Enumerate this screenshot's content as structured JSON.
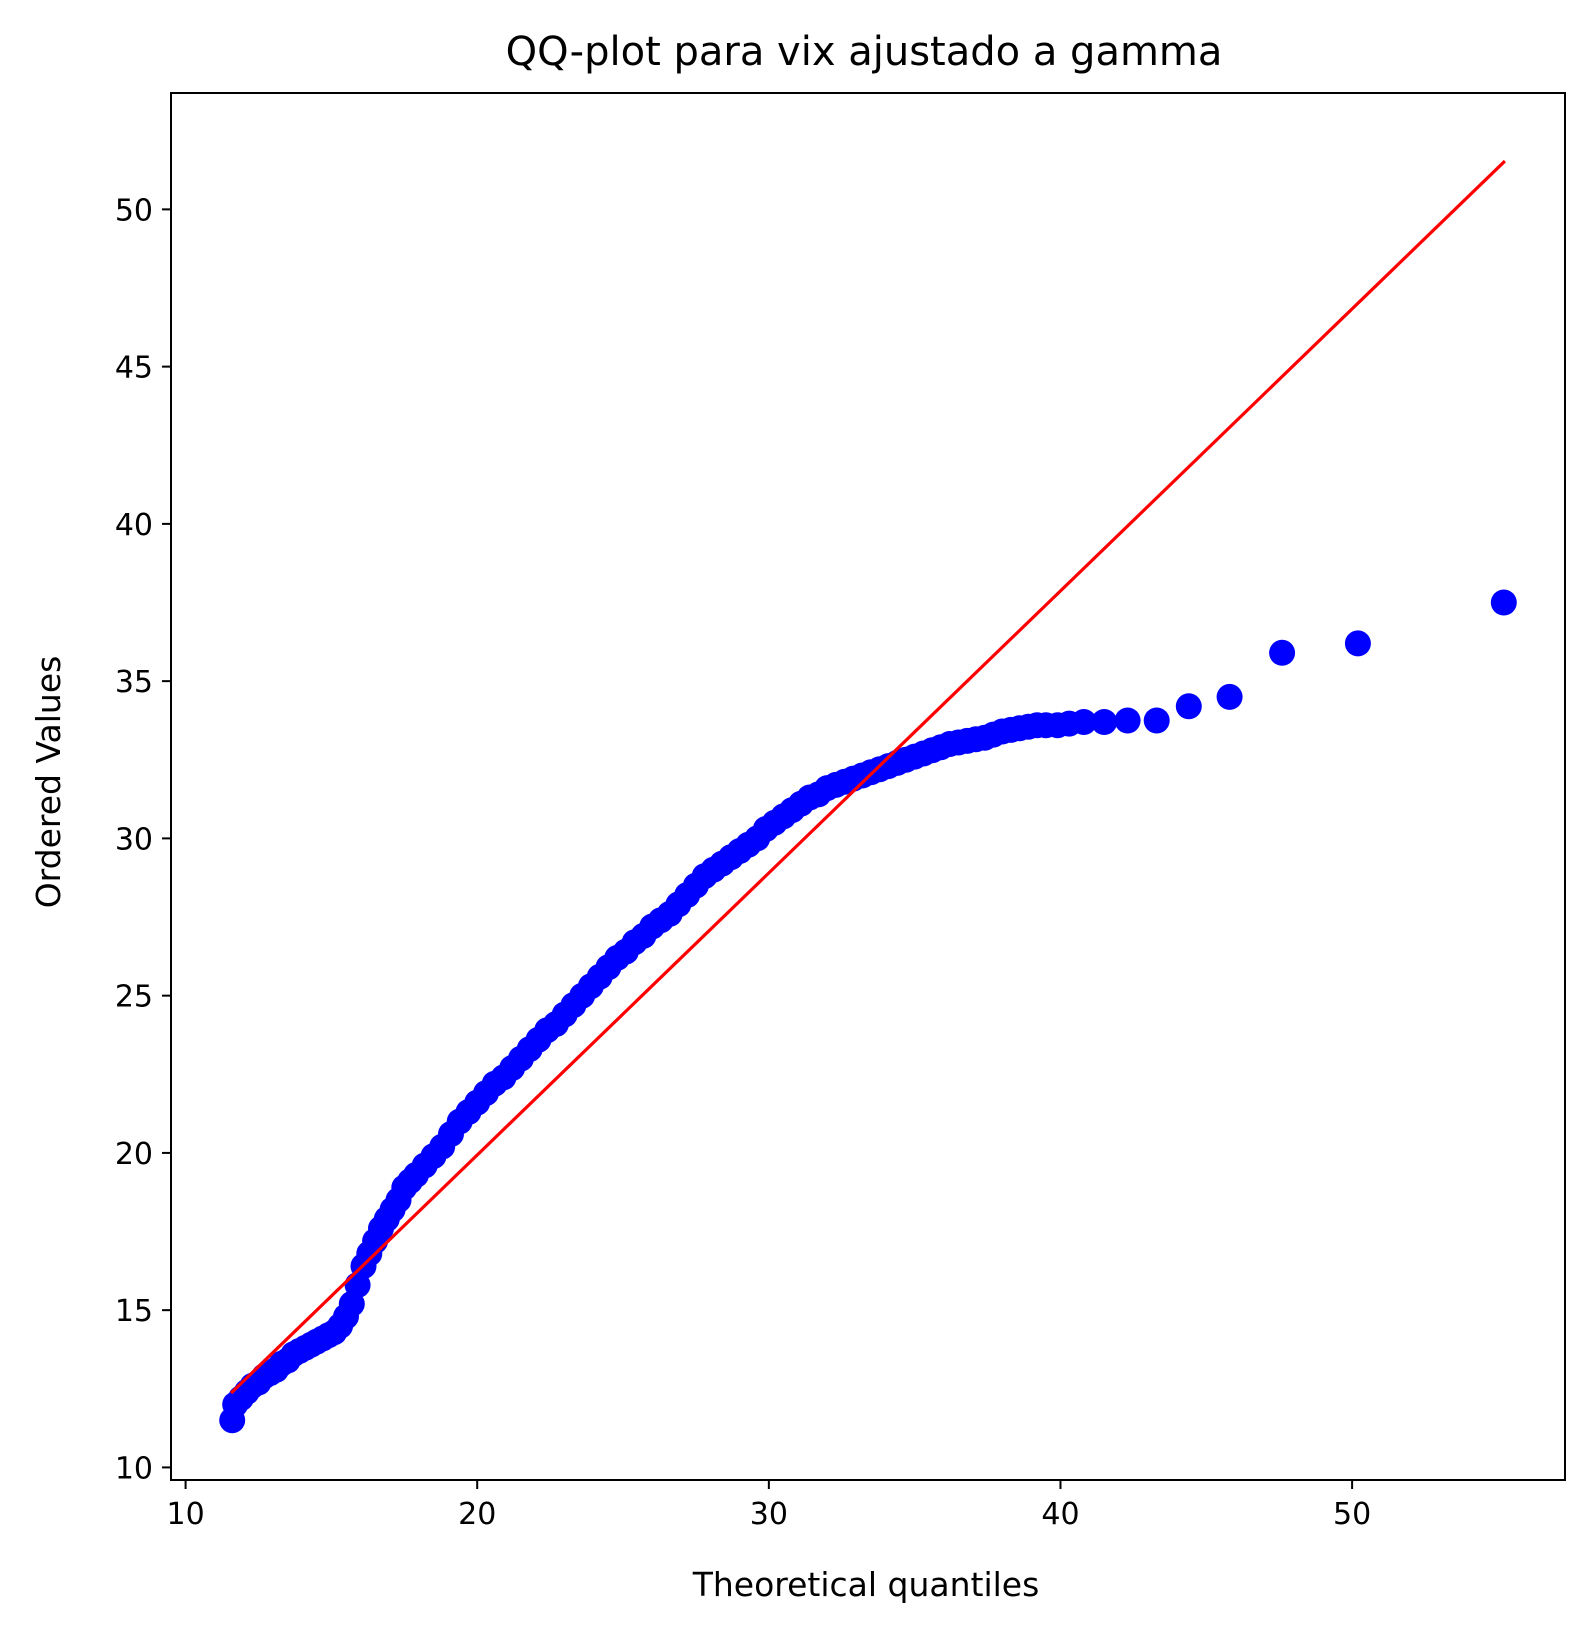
{
  "chart_data": {
    "type": "scatter",
    "title": "QQ-plot para vix ajustado a gamma",
    "xlabel": "Theoretical quantiles",
    "ylabel": "Ordered Values",
    "xlim": [
      9.5,
      57.3
    ],
    "ylim": [
      9.6,
      53.7
    ],
    "xticks": [
      10,
      20,
      30,
      40,
      50
    ],
    "yticks": [
      10,
      15,
      20,
      25,
      30,
      35,
      40,
      45,
      50
    ],
    "grid": false,
    "legend": "none",
    "colors": {
      "points": "#0000ff",
      "fit_line": "#ff0000",
      "axes": "#000000"
    },
    "series": [
      {
        "kind": "points",
        "x": [
          11.6,
          11.7,
          11.9,
          12.1,
          12.3,
          12.5,
          12.7,
          12.9,
          13.1,
          13.3,
          13.5,
          13.7,
          13.9,
          14.1,
          14.3,
          14.5,
          14.7,
          14.9,
          15.1,
          15.3,
          15.5,
          15.7,
          15.9,
          16.1,
          16.3,
          16.5,
          16.7,
          16.9,
          17.1,
          17.3,
          17.5,
          17.7,
          17.9,
          18.2,
          18.5,
          18.8,
          19.1,
          19.4,
          19.7,
          20.0,
          20.3,
          20.6,
          20.9,
          21.2,
          21.5,
          21.8,
          22.1,
          22.4,
          22.7,
          23.0,
          23.3,
          23.6,
          23.9,
          24.2,
          24.5,
          24.8,
          25.1,
          25.4,
          25.7,
          26.0,
          26.3,
          26.6,
          26.9,
          27.2,
          27.5,
          27.8,
          28.1,
          28.4,
          28.7,
          29.0,
          29.3,
          29.6,
          29.9,
          30.2,
          30.5,
          30.8,
          31.1,
          31.4,
          31.7,
          32.0,
          32.3,
          32.6,
          32.9,
          33.2,
          33.5,
          33.8,
          34.1,
          34.4,
          34.7,
          35.0,
          35.3,
          35.6,
          35.9,
          36.2,
          36.5,
          36.8,
          37.1,
          37.4,
          37.7,
          38.0,
          38.3,
          38.6,
          38.9,
          39.2,
          39.5,
          39.9,
          40.3,
          40.8,
          41.5,
          42.3,
          43.3,
          44.4,
          45.8,
          47.6,
          50.2,
          55.2
        ],
        "y": [
          11.5,
          12.0,
          12.2,
          12.4,
          12.6,
          12.7,
          12.9,
          13.0,
          13.1,
          13.3,
          13.4,
          13.6,
          13.7,
          13.8,
          13.9,
          14.0,
          14.1,
          14.2,
          14.3,
          14.5,
          14.8,
          15.2,
          15.8,
          16.4,
          16.8,
          17.2,
          17.6,
          17.9,
          18.2,
          18.5,
          18.9,
          19.1,
          19.3,
          19.6,
          19.9,
          20.2,
          20.6,
          21.0,
          21.3,
          21.6,
          21.9,
          22.2,
          22.4,
          22.7,
          23.0,
          23.3,
          23.6,
          23.9,
          24.1,
          24.4,
          24.7,
          25.0,
          25.3,
          25.6,
          25.9,
          26.2,
          26.4,
          26.7,
          26.9,
          27.2,
          27.4,
          27.6,
          27.9,
          28.2,
          28.5,
          28.8,
          29.0,
          29.2,
          29.4,
          29.6,
          29.8,
          30.0,
          30.3,
          30.5,
          30.7,
          30.9,
          31.1,
          31.3,
          31.4,
          31.6,
          31.7,
          31.8,
          31.9,
          32.0,
          32.1,
          32.2,
          32.3,
          32.4,
          32.5,
          32.6,
          32.7,
          32.8,
          32.9,
          33.0,
          33.05,
          33.1,
          33.15,
          33.2,
          33.3,
          33.4,
          33.45,
          33.5,
          33.55,
          33.6,
          33.6,
          33.6,
          33.65,
          33.7,
          33.7,
          33.75,
          33.75,
          34.2,
          34.5,
          35.9,
          36.2,
          37.5
        ]
      },
      {
        "kind": "fit_line",
        "x": [
          11.6,
          55.2
        ],
        "y": [
          12.4,
          51.5
        ]
      }
    ]
  }
}
